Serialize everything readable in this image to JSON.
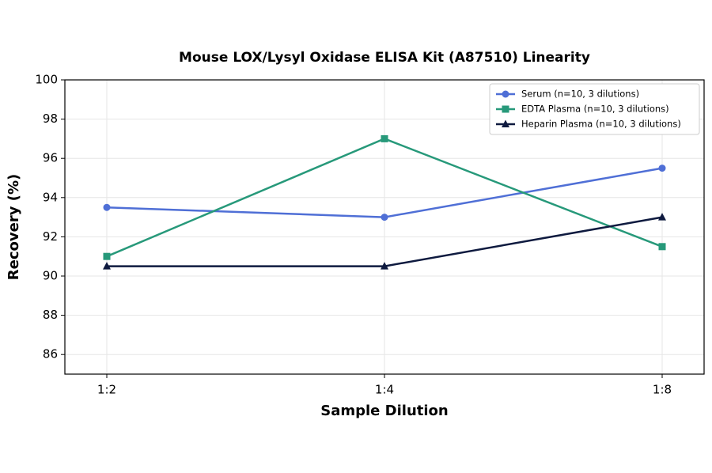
{
  "chart_data": {
    "type": "line",
    "title": "Mouse LOX/Lysyl Oxidase ELISA Kit (A87510) Linearity",
    "x_label": "Sample Dilution",
    "y_label": "Recovery (%)",
    "categories": [
      "1:2",
      "1:4",
      "1:8"
    ],
    "series": [
      {
        "name": "Serum (n=10, 3 dilutions)",
        "color": "#4f6fd6",
        "marker": "circle",
        "values": [
          93.5,
          93.0,
          95.5
        ]
      },
      {
        "name": "EDTA Plasma (n=10, 3 dilutions)",
        "color": "#27997a",
        "marker": "square",
        "values": [
          91.0,
          97.0,
          91.5
        ]
      },
      {
        "name": "Heparin Plasma (n=10, 3 dilutions)",
        "color": "#0e1a3f",
        "marker": "triangle",
        "values": [
          90.5,
          90.5,
          93.0
        ]
      }
    ],
    "ylim": [
      85,
      100
    ],
    "yticks": [
      86,
      88,
      90,
      92,
      94,
      96,
      98,
      100
    ],
    "grid": true,
    "legend": "upper right"
  }
}
